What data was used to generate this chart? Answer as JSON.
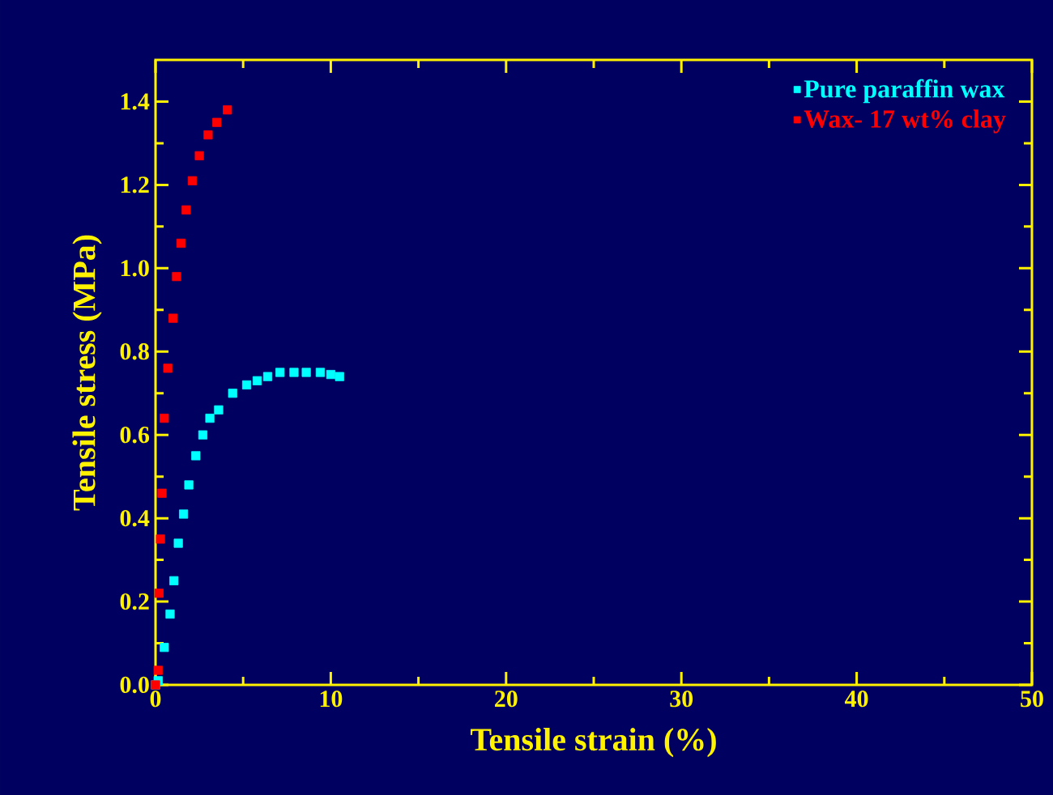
{
  "chart_data": {
    "type": "scatter",
    "xlabel": "Tensile strain (%)",
    "ylabel": "Tensile stress (MPa)",
    "marker": "square",
    "legend": "top right",
    "grid": false,
    "xlim": [
      0,
      50
    ],
    "xticks": [
      0,
      10,
      20,
      30,
      40,
      50
    ],
    "ylim": [
      0,
      1.5
    ],
    "yticks": [
      {
        "value": 0,
        "label": "0.0"
      },
      {
        "value": 0.2,
        "label": "0.2"
      },
      {
        "value": 0.4,
        "label": "0.4"
      },
      {
        "value": 0.6,
        "label": "0.6"
      },
      {
        "value": 0.8,
        "label": "0.8"
      },
      {
        "value": 1.0,
        "label": "1.0"
      },
      {
        "value": 1.2,
        "label": "1.2"
      },
      {
        "value": 1.4,
        "label": "1.4"
      }
    ],
    "series": [
      {
        "name": "Pure paraffin wax",
        "color": "#00ffff",
        "x": [
          0,
          0.15,
          0.5,
          0.83,
          1.05,
          1.3,
          1.6,
          1.9,
          2.3,
          2.7,
          3.1,
          3.6,
          4.4,
          5.2,
          5.8,
          6.4,
          7.1,
          7.9,
          8.6,
          9.4,
          10.0,
          10.5
        ],
        "values": [
          0,
          0.01,
          0.09,
          0.17,
          0.25,
          0.34,
          0.41,
          0.48,
          0.55,
          0.6,
          0.64,
          0.66,
          0.7,
          0.72,
          0.73,
          0.74,
          0.75,
          0.75,
          0.75,
          0.75,
          0.745,
          0.74
        ]
      },
      {
        "name": "Wax- 17 wt% clay",
        "color": "#ff0000",
        "x": [
          0,
          0.15,
          0.2,
          0.28,
          0.37,
          0.5,
          0.7,
          1.0,
          1.2,
          1.45,
          1.75,
          2.1,
          2.5,
          3.0,
          3.5,
          4.1
        ],
        "values": [
          0,
          0.035,
          0.22,
          0.35,
          0.46,
          0.64,
          0.76,
          0.88,
          0.98,
          1.06,
          1.14,
          1.21,
          1.27,
          1.32,
          1.35,
          1.38
        ]
      }
    ]
  }
}
